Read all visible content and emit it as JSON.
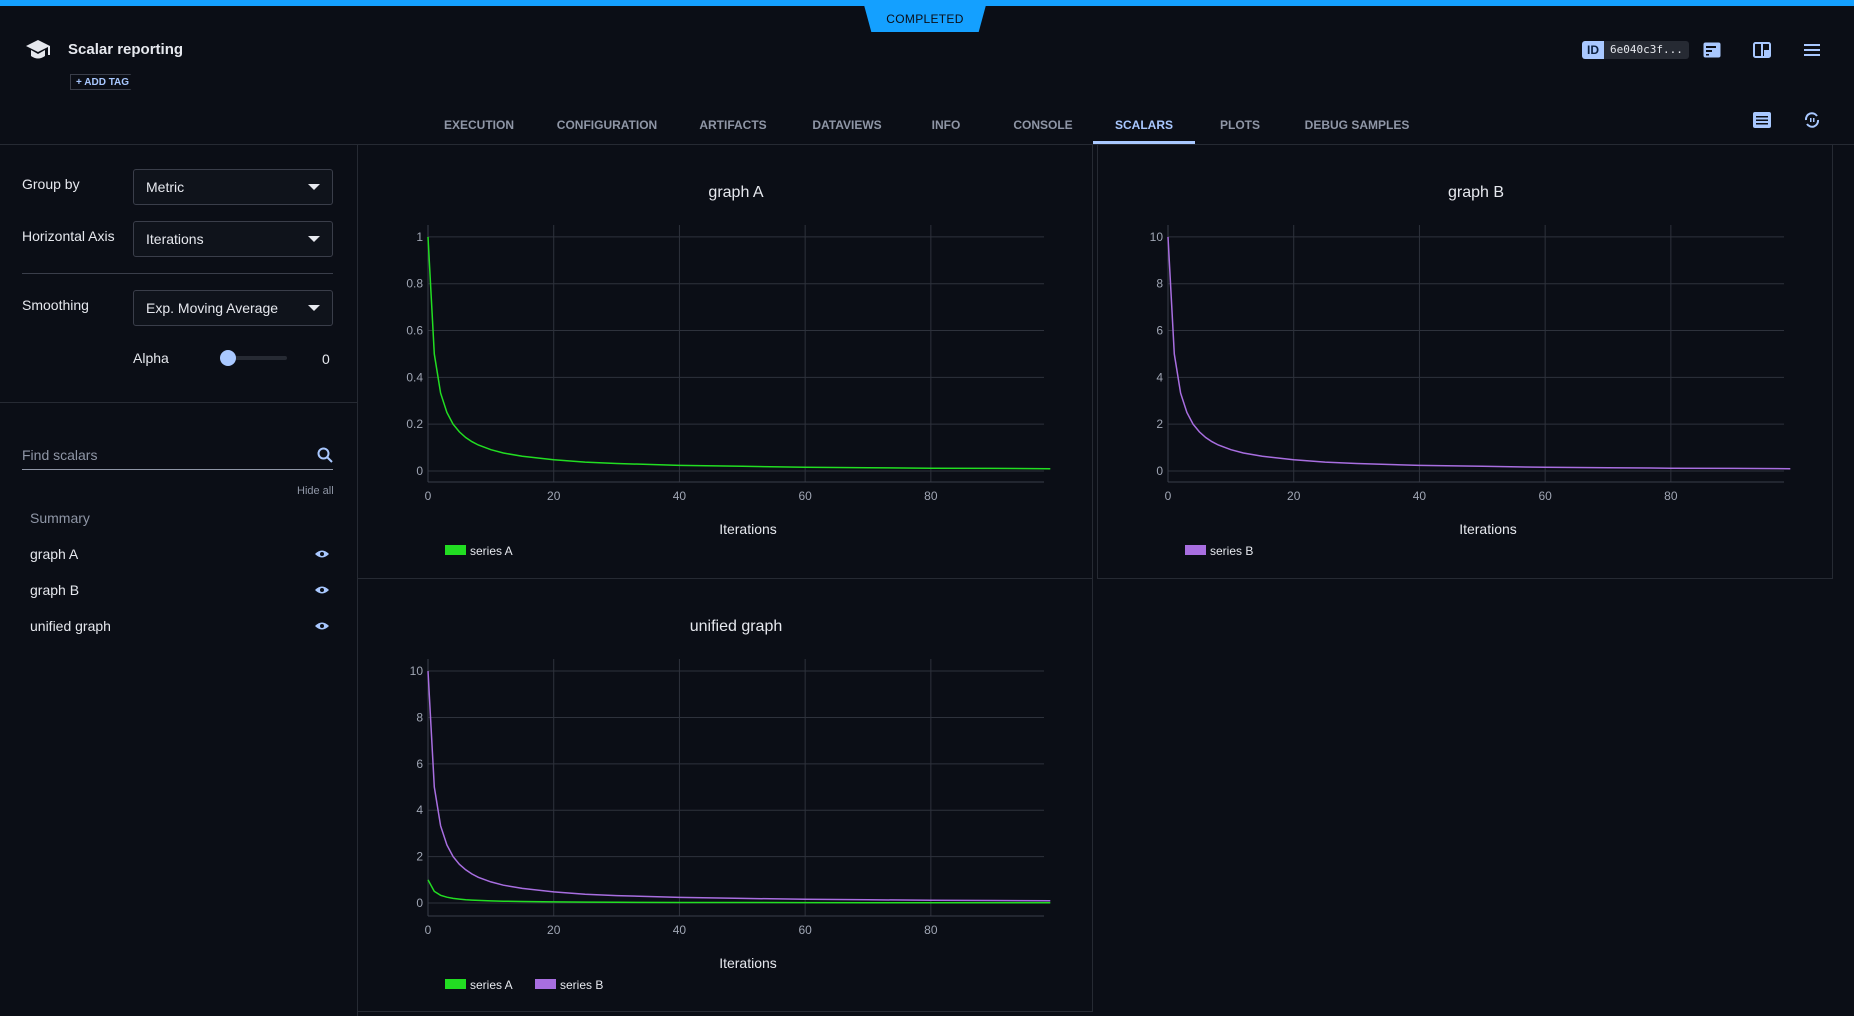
{
  "header": {
    "status": "COMPLETED",
    "title": "Scalar reporting",
    "add_tag": "+ ADD TAG",
    "id_label": "ID",
    "id_value": "6e040c3f...",
    "icons": [
      "info-panel-icon",
      "layout-icon",
      "menu-icon",
      "list-view-icon",
      "auto-refresh-icon"
    ]
  },
  "tabs": [
    {
      "label": "EXECUTION"
    },
    {
      "label": "CONFIGURATION"
    },
    {
      "label": "ARTIFACTS"
    },
    {
      "label": "DATAVIEWS"
    },
    {
      "label": "INFO"
    },
    {
      "label": "CONSOLE"
    },
    {
      "label": "SCALARS",
      "active": true
    },
    {
      "label": "PLOTS"
    },
    {
      "label": "DEBUG SAMPLES"
    }
  ],
  "sidebar": {
    "group_by_label": "Group by",
    "group_by_value": "Metric",
    "horizontal_axis_label": "Horizontal Axis",
    "horizontal_axis_value": "Iterations",
    "smoothing_label": "Smoothing",
    "smoothing_value": "Exp. Moving Average",
    "alpha_label": "Alpha",
    "alpha_value": "0",
    "search_placeholder": "Find scalars",
    "hide_all": "Hide all",
    "items": [
      {
        "label": "Summary"
      },
      {
        "label": "graph A"
      },
      {
        "label": "graph B"
      },
      {
        "label": "unified graph"
      }
    ]
  },
  "colors": {
    "accent": "#a9c8ff",
    "status": "#14a0ff",
    "series_a": "#22dd22",
    "series_b": "#a86ee0"
  },
  "chart_data": [
    {
      "type": "line",
      "title": "graph A",
      "xlabel": "Iterations",
      "xlim": [
        0,
        98
      ],
      "ylim": [
        -0.047,
        1.051
      ],
      "xticks": [
        0,
        20,
        40,
        60,
        80
      ],
      "yticks": [
        0,
        0.2,
        0.4,
        0.6,
        0.8,
        1
      ],
      "yticklabels": [
        "0",
        "0.2",
        "0.4",
        "0.6",
        "0.8",
        "1"
      ],
      "grid": true,
      "legend": "bottom-left",
      "series": [
        {
          "name": "series A",
          "color": "#22dd22",
          "x": [
            0,
            1,
            2,
            3,
            4,
            5,
            6,
            7,
            8,
            10,
            12,
            15,
            20,
            25,
            30,
            40,
            50,
            60,
            70,
            80,
            90,
            99
          ],
          "y": [
            1,
            0.5,
            0.333,
            0.25,
            0.2,
            0.167,
            0.143,
            0.125,
            0.111,
            0.091,
            0.077,
            0.063,
            0.048,
            0.038,
            0.032,
            0.024,
            0.02,
            0.016,
            0.014,
            0.012,
            0.011,
            0.01
          ]
        }
      ]
    },
    {
      "type": "line",
      "title": "graph B",
      "xlabel": "Iterations",
      "xlim": [
        0,
        98
      ],
      "ylim": [
        -0.47,
        10.51
      ],
      "xticks": [
        0,
        20,
        40,
        60,
        80
      ],
      "yticks": [
        0,
        2,
        4,
        6,
        8,
        10
      ],
      "yticklabels": [
        "0",
        "2",
        "4",
        "6",
        "8",
        "10"
      ],
      "grid": true,
      "legend": "bottom-left",
      "series": [
        {
          "name": "series B",
          "color": "#a86ee0",
          "x": [
            0,
            1,
            2,
            3,
            4,
            5,
            6,
            7,
            8,
            10,
            12,
            15,
            20,
            25,
            30,
            40,
            50,
            60,
            70,
            80,
            90,
            99
          ],
          "y": [
            10,
            5,
            3.33,
            2.5,
            2,
            1.67,
            1.43,
            1.25,
            1.11,
            0.91,
            0.77,
            0.63,
            0.48,
            0.38,
            0.32,
            0.24,
            0.2,
            0.16,
            0.14,
            0.12,
            0.11,
            0.1
          ]
        }
      ]
    },
    {
      "type": "line",
      "title": "unified graph",
      "xlabel": "Iterations",
      "xlim": [
        0,
        98
      ],
      "ylim": [
        -0.56,
        10.52
      ],
      "xticks": [
        0,
        20,
        40,
        60,
        80
      ],
      "yticks": [
        0,
        2,
        4,
        6,
        8,
        10
      ],
      "yticklabels": [
        "0",
        "2",
        "4",
        "6",
        "8",
        "10"
      ],
      "grid": true,
      "legend": "bottom-left",
      "series": [
        {
          "name": "series A",
          "color": "#22dd22",
          "x": [
            0,
            1,
            2,
            3,
            4,
            5,
            6,
            7,
            8,
            10,
            12,
            15,
            20,
            25,
            30,
            40,
            50,
            60,
            70,
            80,
            90,
            99
          ],
          "y": [
            1,
            0.5,
            0.333,
            0.25,
            0.2,
            0.167,
            0.143,
            0.125,
            0.111,
            0.091,
            0.077,
            0.063,
            0.048,
            0.038,
            0.032,
            0.024,
            0.02,
            0.016,
            0.014,
            0.012,
            0.011,
            0.01
          ]
        },
        {
          "name": "series B",
          "color": "#a86ee0",
          "x": [
            0,
            1,
            2,
            3,
            4,
            5,
            6,
            7,
            8,
            10,
            12,
            15,
            20,
            25,
            30,
            40,
            50,
            60,
            70,
            80,
            90,
            99
          ],
          "y": [
            10,
            5,
            3.33,
            2.5,
            2,
            1.67,
            1.43,
            1.25,
            1.11,
            0.91,
            0.77,
            0.63,
            0.48,
            0.38,
            0.32,
            0.24,
            0.2,
            0.16,
            0.14,
            0.12,
            0.11,
            0.1
          ]
        }
      ]
    }
  ]
}
